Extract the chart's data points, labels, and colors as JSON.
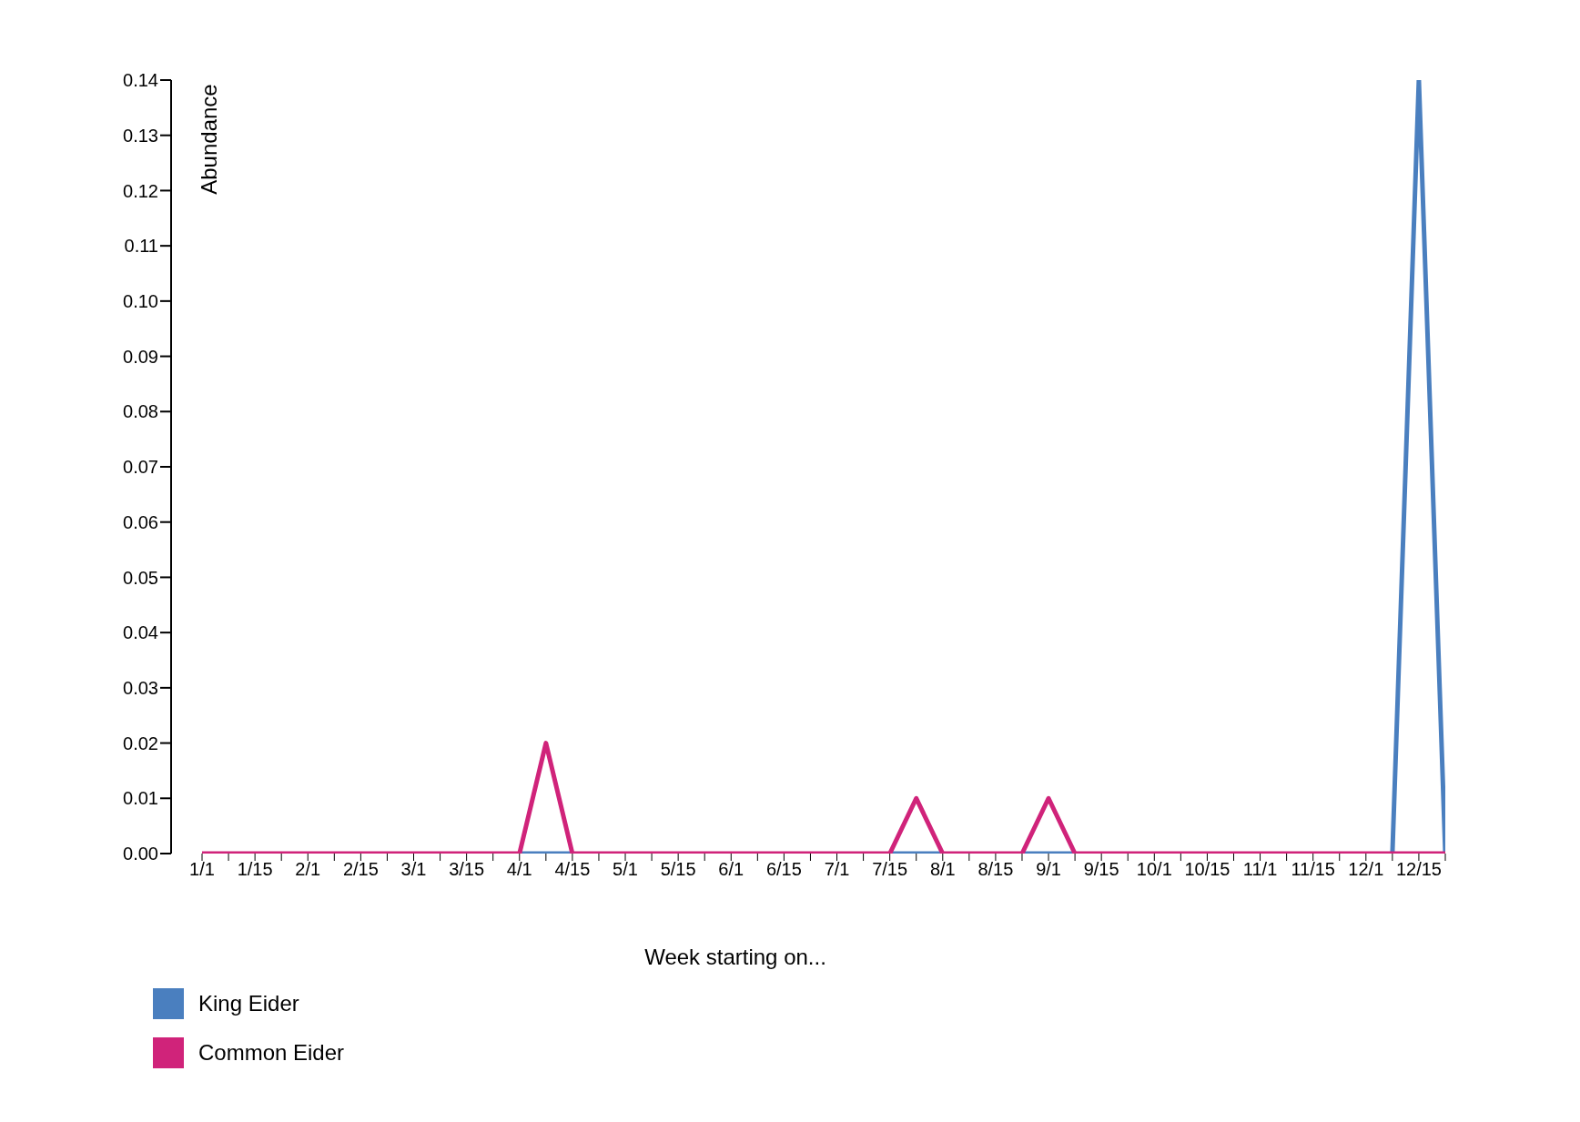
{
  "chart_data": {
    "type": "line",
    "xlabel": "Week starting on...",
    "ylabel": "Abundance",
    "categories": [
      "1/1",
      null,
      "1/15",
      null,
      "2/1",
      null,
      "2/15",
      null,
      "3/1",
      null,
      "3/15",
      null,
      "4/1",
      null,
      "4/15",
      null,
      "5/1",
      null,
      "5/15",
      null,
      "6/1",
      null,
      "6/15",
      null,
      "7/1",
      null,
      "7/15",
      null,
      "8/1",
      null,
      "8/15",
      null,
      "9/1",
      null,
      "9/15",
      null,
      "10/1",
      null,
      "10/15",
      null,
      "11/1",
      null,
      "11/15",
      null,
      "12/1",
      null,
      "12/15",
      null
    ],
    "series": [
      {
        "name": "King Eider",
        "color": "#4a7fbf",
        "values": [
          null,
          null,
          null,
          null,
          null,
          null,
          null,
          null,
          null,
          null,
          null,
          null,
          0,
          0,
          0,
          null,
          null,
          null,
          null,
          null,
          null,
          null,
          null,
          null,
          null,
          null,
          0,
          0,
          0,
          null,
          null,
          0,
          0,
          0,
          null,
          null,
          null,
          null,
          null,
          null,
          null,
          null,
          null,
          null,
          null,
          0,
          0.14,
          0
        ]
      },
      {
        "name": "Common Eider",
        "color": "#d0237a",
        "values": [
          0,
          0,
          0,
          0,
          0,
          0,
          0,
          0,
          0,
          0,
          0,
          0,
          0,
          0.02,
          0,
          0,
          0,
          0,
          0,
          0,
          0,
          0,
          0,
          0,
          0,
          0,
          0,
          0.01,
          0,
          0,
          0,
          0,
          0.01,
          0,
          0,
          0,
          0,
          0,
          0,
          0,
          0,
          0,
          0,
          0,
          0,
          0,
          0,
          0
        ]
      }
    ],
    "ylim": [
      0,
      0.14
    ],
    "yticks": [
      {
        "value": 0,
        "label": "0.00"
      },
      {
        "value": 0.01,
        "label": "0.01"
      },
      {
        "value": 0.02,
        "label": "0.02"
      },
      {
        "value": 0.03,
        "label": "0.03"
      },
      {
        "value": 0.04,
        "label": "0.04"
      },
      {
        "value": 0.05,
        "label": "0.05"
      },
      {
        "value": 0.06,
        "label": "0.06"
      },
      {
        "value": 0.07,
        "label": "0.07"
      },
      {
        "value": 0.08,
        "label": "0.08"
      },
      {
        "value": 0.09,
        "label": "0.09"
      },
      {
        "value": 0.1,
        "label": "0.10"
      },
      {
        "value": 0.11,
        "label": "0.11"
      },
      {
        "value": 0.12,
        "label": "0.12"
      },
      {
        "value": 0.13,
        "label": "0.13"
      },
      {
        "value": 0.14,
        "label": "0.14"
      }
    ],
    "grid": false,
    "legend": "bottom left",
    "marker": "none",
    "line_style": "solid"
  }
}
